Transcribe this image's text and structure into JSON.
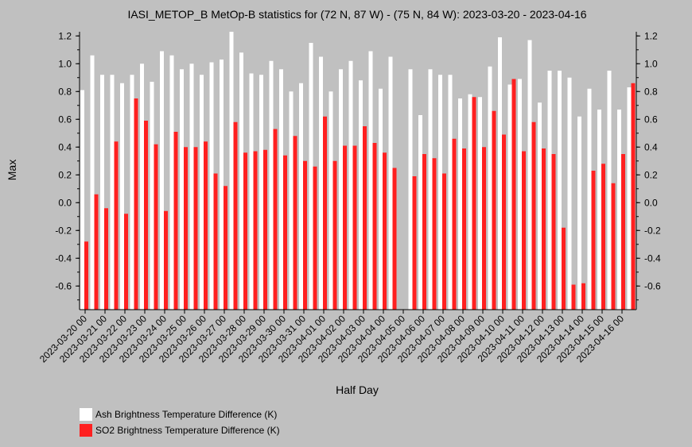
{
  "chart_data": {
    "type": "bar",
    "title": "IASI_METOP_B MetOp-B statistics for (72 N, 87 W) - (75 N, 84 W): 2023-03-20 - 2023-04-16",
    "xlabel": "Half Day",
    "ylabel": "Max",
    "ylim": [
      -0.77,
      1.23
    ],
    "yticks": [
      -0.6,
      -0.4,
      -0.2,
      0.0,
      0.2,
      0.4,
      0.6,
      0.8,
      1.0,
      1.2
    ],
    "ytick_labels": [
      "-0.6",
      "-0.4",
      "-0.2",
      "0.0",
      "0.2",
      "0.4",
      "0.6",
      "0.8",
      "1.0",
      "1.2"
    ],
    "categories": [
      "2023-03-20 00",
      "2023-03-20 12",
      "2023-03-21 00",
      "2023-03-21 12",
      "2023-03-22 00",
      "2023-03-22 12",
      "2023-03-23 00",
      "2023-03-23 12",
      "2023-03-24 00",
      "2023-03-24 12",
      "2023-03-25 00",
      "2023-03-25 12",
      "2023-03-26 00",
      "2023-03-26 12",
      "2023-03-27 00",
      "2023-03-27 12",
      "2023-03-28 00",
      "2023-03-28 12",
      "2023-03-29 00",
      "2023-03-29 12",
      "2023-03-30 00",
      "2023-03-30 12",
      "2023-03-31 00",
      "2023-03-31 12",
      "2023-04-01 00",
      "2023-04-01 12",
      "2023-04-02 00",
      "2023-04-02 12",
      "2023-04-03 00",
      "2023-04-03 12",
      "2023-04-04 00",
      "2023-04-04 12",
      "2023-04-05 00",
      "2023-04-05 12",
      "2023-04-06 00",
      "2023-04-06 12",
      "2023-04-07 00",
      "2023-04-07 12",
      "2023-04-08 00",
      "2023-04-08 12",
      "2023-04-09 00",
      "2023-04-09 12",
      "2023-04-10 00",
      "2023-04-10 12",
      "2023-04-11 00",
      "2023-04-11 12",
      "2023-04-12 00",
      "2023-04-12 12",
      "2023-04-13 00",
      "2023-04-13 12",
      "2023-04-14 00",
      "2023-04-14 12",
      "2023-04-15 00",
      "2023-04-15 12",
      "2023-04-16 00",
      "2023-04-16 12"
    ],
    "xtick_labels": [
      "2023-03-20 00",
      "2023-03-21 00",
      "2023-03-22 00",
      "2023-03-23 00",
      "2023-03-24 00",
      "2023-03-25 00",
      "2023-03-26 00",
      "2023-03-27 00",
      "2023-03-28 00",
      "2023-03-29 00",
      "2023-03-30 00",
      "2023-03-31 00",
      "2023-04-01 00",
      "2023-04-02 00",
      "2023-04-03 00",
      "2023-04-04 00",
      "2023-04-05 00",
      "2023-04-06 00",
      "2023-04-07 00",
      "2023-04-08 00",
      "2023-04-09 00",
      "2023-04-10 00",
      "2023-04-11 00",
      "2023-04-12 00",
      "2023-04-13 00",
      "2023-04-14 00",
      "2023-04-15 00",
      "2023-04-16 00"
    ],
    "series": [
      {
        "name": "Ash Brightness Temperature Difference (K)",
        "color": "#ffffff",
        "values": [
          0.81,
          1.06,
          0.92,
          0.92,
          0.86,
          0.92,
          1.0,
          0.87,
          1.09,
          1.06,
          0.96,
          1.0,
          0.92,
          1.01,
          1.03,
          1.23,
          1.08,
          0.93,
          0.92,
          1.02,
          0.96,
          0.8,
          0.86,
          1.15,
          1.05,
          0.8,
          0.96,
          1.02,
          0.88,
          1.09,
          0.82,
          1.05,
          null,
          0.96,
          0.63,
          0.96,
          0.92,
          0.92,
          0.75,
          0.78,
          0.76,
          0.98,
          1.19,
          0.85,
          0.89,
          1.17,
          0.72,
          0.95,
          0.95,
          0.9,
          0.62,
          0.82,
          0.67,
          0.95,
          0.67,
          0.83
        ]
      },
      {
        "name": "SO2 Brightness Temperature Difference (K)",
        "color": "#ff2020",
        "values": [
          -0.28,
          0.06,
          -0.04,
          0.44,
          -0.08,
          0.75,
          0.59,
          0.42,
          -0.06,
          0.51,
          0.4,
          0.4,
          0.44,
          0.21,
          0.12,
          0.58,
          0.36,
          0.37,
          0.38,
          0.53,
          0.34,
          0.48,
          0.3,
          0.26,
          0.62,
          0.3,
          0.41,
          0.41,
          0.55,
          0.43,
          0.36,
          0.25,
          null,
          0.19,
          0.35,
          0.32,
          0.21,
          0.46,
          0.39,
          0.76,
          0.4,
          0.66,
          0.49,
          0.89,
          0.37,
          0.58,
          0.39,
          0.35,
          -0.18,
          -0.59,
          -0.58,
          0.23,
          0.28,
          0.14,
          0.35,
          0.86
        ]
      }
    ],
    "grid": false,
    "legend_position": "bottom-left"
  }
}
